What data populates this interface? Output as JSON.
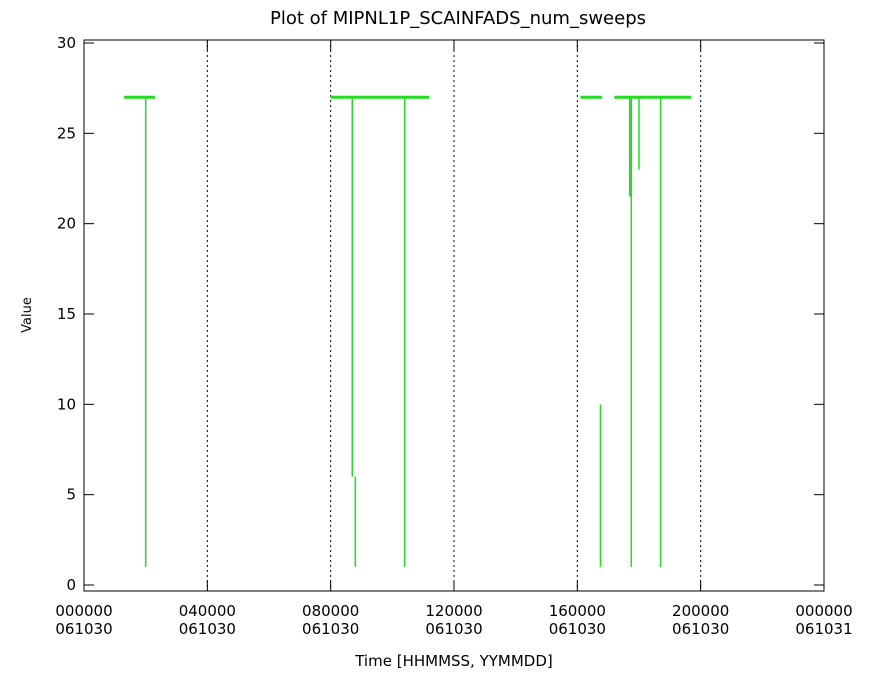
{
  "chart_data": {
    "type": "line",
    "title": "Plot of MIPNL1P_SCAINFADS_num_sweeps",
    "xlabel": "Time [HHMMSS, YYMMDD]",
    "ylabel": "Value",
    "ylim": [
      0,
      30
    ],
    "yticks": [
      0,
      5,
      10,
      15,
      20,
      25,
      30
    ],
    "xlim_hours": [
      0,
      24
    ],
    "xticks": [
      {
        "hours": 0,
        "time": "000000",
        "date": "061030"
      },
      {
        "hours": 4,
        "time": "040000",
        "date": "061030"
      },
      {
        "hours": 8,
        "time": "080000",
        "date": "061030"
      },
      {
        "hours": 12,
        "time": "120000",
        "date": "061030"
      },
      {
        "hours": 16,
        "time": "160000",
        "date": "061030"
      },
      {
        "hours": 20,
        "time": "200000",
        "date": "061030"
      },
      {
        "hours": 24,
        "time": "000000",
        "date": "061031"
      }
    ],
    "vertical_dotted_lines_hours": [
      4,
      8,
      12,
      16,
      20
    ],
    "grid": false,
    "series_color": "#22dd22",
    "segments": [
      {
        "x_hours": [
          1.3,
          2.3
        ],
        "y": 27
      },
      {
        "x_hours": [
          8.0,
          11.2
        ],
        "y": 27
      },
      {
        "x_hours": [
          16.1,
          16.8
        ],
        "y": 27
      },
      {
        "x_hours": [
          17.2,
          19.7
        ],
        "y": 27
      }
    ],
    "drops": [
      {
        "x_hours": 2.0,
        "from": 27,
        "to": 1
      },
      {
        "x_hours": 8.7,
        "from": 27,
        "to": 6
      },
      {
        "x_hours": 8.8,
        "from": 6,
        "to": 1
      },
      {
        "x_hours": 10.4,
        "from": 27,
        "to": 1
      },
      {
        "x_hours": 16.75,
        "from": 10,
        "to": 1
      },
      {
        "x_hours": 17.7,
        "from": 27,
        "to": 21.5
      },
      {
        "x_hours": 17.75,
        "from": 27,
        "to": 1
      },
      {
        "x_hours": 18.0,
        "from": 27,
        "to": 23
      },
      {
        "x_hours": 18.7,
        "from": 27,
        "to": 1
      }
    ]
  }
}
